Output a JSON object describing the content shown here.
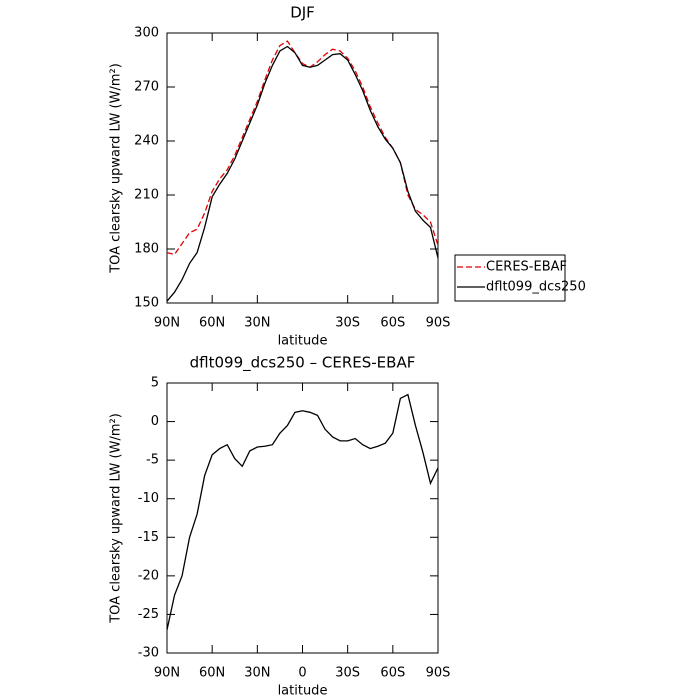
{
  "chart_data": [
    {
      "type": "line",
      "title": "DJF",
      "xlabel": "latitude",
      "ylabel": "TOA clearsky upward LW (W/m²)",
      "x": [
        90,
        85,
        80,
        75,
        70,
        65,
        60,
        55,
        50,
        45,
        40,
        35,
        30,
        25,
        20,
        15,
        10,
        5,
        0,
        -5,
        -10,
        -15,
        -20,
        -25,
        -30,
        -35,
        -40,
        -45,
        -50,
        -55,
        -60,
        -65,
        -70,
        -75,
        -80,
        -85,
        -90
      ],
      "xlim": [
        90,
        -90
      ],
      "xticks": [
        {
          "value": 90,
          "label": "90N"
        },
        {
          "value": 60,
          "label": "60N"
        },
        {
          "value": 30,
          "label": "30N"
        },
        {
          "value": -30,
          "label": "30S"
        },
        {
          "value": -60,
          "label": "60S"
        },
        {
          "value": -90,
          "label": "90S"
        }
      ],
      "ylim": [
        150,
        300
      ],
      "yticks": [
        150,
        180,
        210,
        240,
        270,
        300
      ],
      "legend": "right",
      "series": [
        {
          "name": "CERES-EBAF",
          "color": "#e00000",
          "dashed": true,
          "values": [
            178,
            177,
            183,
            189,
            191,
            200,
            212,
            219,
            224,
            232,
            242,
            252,
            262,
            274,
            285,
            293,
            295.5,
            289,
            283,
            281,
            284,
            288,
            291,
            290,
            286,
            279,
            270,
            259,
            250,
            242,
            236,
            228,
            210,
            202,
            199,
            195,
            182
          ]
        },
        {
          "name": "dflt099_dcs250",
          "color": "#000000",
          "dashed": false,
          "values": [
            151,
            156,
            163,
            172,
            178,
            192,
            209,
            216,
            222,
            230,
            240,
            250,
            260,
            272,
            282,
            290,
            292.5,
            289,
            282,
            281,
            282,
            285,
            288,
            288.5,
            285,
            277,
            268,
            257,
            248,
            241,
            236,
            228,
            212,
            201,
            196,
            192,
            175
          ]
        }
      ]
    },
    {
      "type": "line",
      "title": "dflt099_dcs250 – CERES-EBAF",
      "xlabel": "latitude",
      "ylabel": "TOA clearsky upward LW (W/m²)",
      "x": [
        90,
        85,
        80,
        75,
        70,
        65,
        60,
        55,
        50,
        45,
        40,
        35,
        30,
        25,
        20,
        15,
        10,
        5,
        0,
        -5,
        -10,
        -15,
        -20,
        -25,
        -30,
        -35,
        -40,
        -45,
        -50,
        -55,
        -60,
        -65,
        -70,
        -75,
        -80,
        -85,
        -90
      ],
      "xlim": [
        90,
        -90
      ],
      "xticks": [
        {
          "value": 90,
          "label": "90N"
        },
        {
          "value": 60,
          "label": "60N"
        },
        {
          "value": 30,
          "label": "30N"
        },
        0,
        {
          "value": -30,
          "label": "30S"
        },
        {
          "value": -60,
          "label": "60S"
        },
        {
          "value": -90,
          "label": "90S"
        }
      ],
      "ylim": [
        -30,
        5
      ],
      "yticks": [
        -30,
        -25,
        -20,
        -15,
        -10,
        -5,
        0,
        5
      ],
      "color": "#000000",
      "values": [
        -27,
        -22.5,
        -20,
        -15,
        -12,
        -7,
        -4.3,
        -3.5,
        -3,
        -4.8,
        -5.8,
        -3.8,
        -3.3,
        -3.2,
        -3,
        -1.5,
        -0.5,
        1.2,
        1.4,
        1.2,
        0.8,
        -1,
        -2,
        -2.5,
        -2.5,
        -2.2,
        -3,
        -3.5,
        -3.2,
        -2.8,
        -1.5,
        3,
        3.5,
        -0.5,
        -4,
        -8,
        -6
      ]
    }
  ]
}
